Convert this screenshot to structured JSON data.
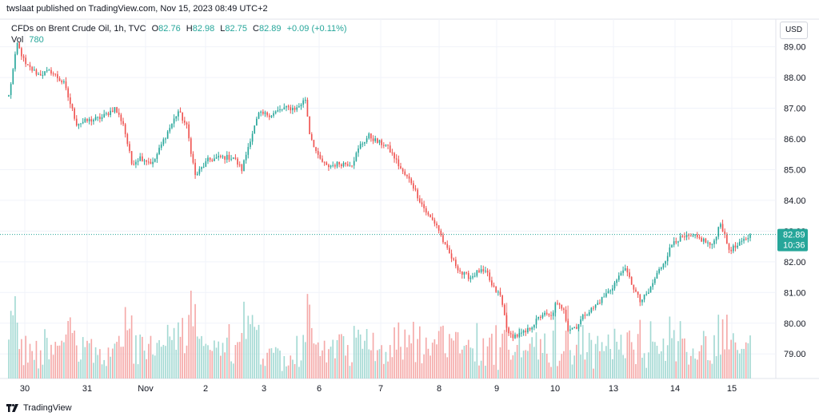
{
  "caption": "twslaat published on TradingView.com, Nov 15, 2023 08:49 UTC+2",
  "legend": {
    "symbol": "CFDs on Brent Crude Oil, 1h, TVC",
    "o_label": "O",
    "o_value": "82.76",
    "h_label": "H",
    "h_value": "82.98",
    "l_label": "L",
    "l_value": "82.75",
    "c_label": "C",
    "c_value": "82.89",
    "change": "+0.09 (+0.11%)",
    "vol_label": "Vol",
    "vol_value": "780"
  },
  "currency_button": "USD",
  "price_badge": {
    "price": "82.89",
    "countdown": "10:36"
  },
  "footer_brand": "TradingView",
  "colors": {
    "up": "#26a69a",
    "down": "#ef5350",
    "up_vol": "#a3d9d3",
    "down_vol": "#f5a9a8",
    "grid": "#f0f3fa",
    "badge": "#26a69a"
  },
  "chart_data": {
    "type": "candlestick",
    "y_axis": {
      "ticks": [
        "89.00",
        "88.00",
        "87.00",
        "86.00",
        "85.00",
        "84.00",
        "83.00",
        "82.00",
        "81.00",
        "80.00",
        "79.00"
      ],
      "range": [
        78.2,
        89.9
      ]
    },
    "x_axis": {
      "ticks": [
        "30",
        "31",
        "Nov",
        "2",
        "3",
        "6",
        "7",
        "8",
        "9",
        "10",
        "13",
        "14",
        "15"
      ]
    },
    "last_price": 82.89,
    "anchors": [
      [
        0,
        87.4
      ],
      [
        4,
        89.1
      ],
      [
        8,
        88.4
      ],
      [
        14,
        88.1
      ],
      [
        20,
        88.2
      ],
      [
        26,
        87.8
      ],
      [
        32,
        86.5
      ],
      [
        38,
        86.6
      ],
      [
        44,
        86.7
      ],
      [
        50,
        87.0
      ],
      [
        54,
        86.5
      ],
      [
        58,
        85.2
      ],
      [
        62,
        85.4
      ],
      [
        68,
        85.2
      ],
      [
        74,
        86.1
      ],
      [
        80,
        86.9
      ],
      [
        84,
        86.4
      ],
      [
        88,
        84.8
      ],
      [
        94,
        85.3
      ],
      [
        100,
        85.4
      ],
      [
        106,
        85.4
      ],
      [
        110,
        85.0
      ],
      [
        114,
        86.0
      ],
      [
        118,
        86.8
      ],
      [
        124,
        86.8
      ],
      [
        130,
        87.0
      ],
      [
        136,
        87.0
      ],
      [
        140,
        87.3
      ],
      [
        142,
        86.2
      ],
      [
        146,
        85.4
      ],
      [
        150,
        85.1
      ],
      [
        156,
        85.2
      ],
      [
        162,
        85.2
      ],
      [
        166,
        85.8
      ],
      [
        170,
        86.1
      ],
      [
        174,
        85.9
      ],
      [
        178,
        85.8
      ],
      [
        182,
        85.4
      ],
      [
        186,
        84.9
      ],
      [
        190,
        84.6
      ],
      [
        194,
        84.0
      ],
      [
        198,
        83.5
      ],
      [
        202,
        83.2
      ],
      [
        206,
        82.5
      ],
      [
        210,
        82.0
      ],
      [
        214,
        81.6
      ],
      [
        218,
        81.5
      ],
      [
        222,
        81.7
      ],
      [
        226,
        81.6
      ],
      [
        228,
        81.2
      ],
      [
        232,
        80.9
      ],
      [
        236,
        79.6
      ],
      [
        240,
        79.6
      ],
      [
        244,
        79.7
      ],
      [
        248,
        80.0
      ],
      [
        252,
        80.3
      ],
      [
        256,
        80.2
      ],
      [
        258,
        80.6
      ],
      [
        262,
        80.5
      ],
      [
        264,
        79.8
      ],
      [
        268,
        79.9
      ],
      [
        272,
        80.3
      ],
      [
        276,
        80.5
      ],
      [
        280,
        80.8
      ],
      [
        284,
        81.1
      ],
      [
        288,
        81.5
      ],
      [
        290,
        81.8
      ],
      [
        292,
        81.6
      ],
      [
        296,
        81.0
      ],
      [
        298,
        80.7
      ],
      [
        302,
        81.0
      ],
      [
        306,
        81.6
      ],
      [
        310,
        82.1
      ],
      [
        314,
        82.7
      ],
      [
        320,
        82.8
      ],
      [
        324,
        82.8
      ],
      [
        328,
        82.7
      ],
      [
        332,
        82.5
      ],
      [
        336,
        83.3
      ],
      [
        338,
        82.8
      ],
      [
        340,
        82.4
      ],
      [
        344,
        82.5
      ],
      [
        350,
        82.89
      ]
    ]
  }
}
